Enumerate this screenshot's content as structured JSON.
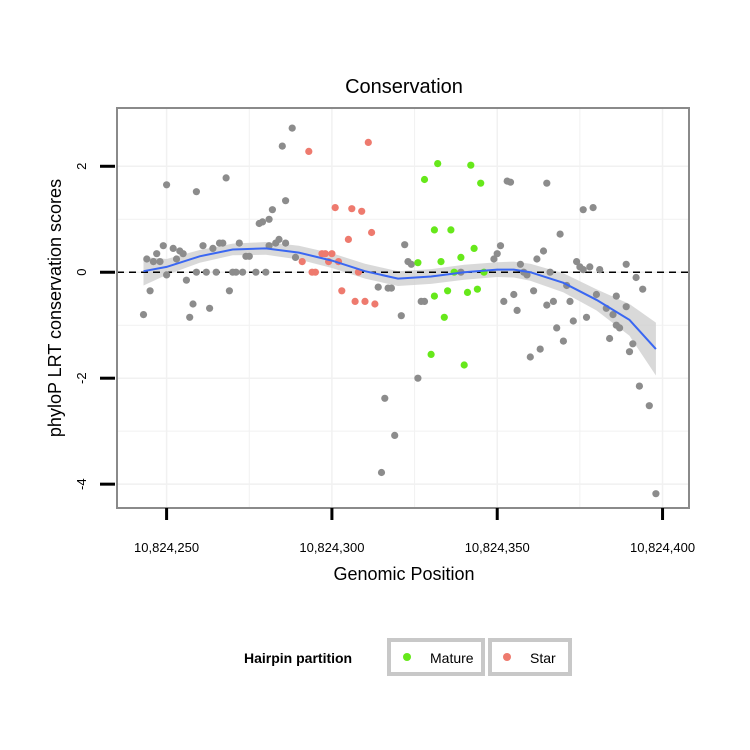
{
  "chart_data": {
    "type": "scatter",
    "title": "Conservation",
    "xlabel": "Genomic Position",
    "ylabel": "phyloP LRT conservation scores",
    "xlim": [
      10824235,
      10824408
    ],
    "ylim": [
      -4.45,
      3.1
    ],
    "x_ticks": [
      10824250,
      10824300,
      10824350,
      10824400
    ],
    "x_tick_labels": [
      "10,824,250",
      "10,824,300",
      "10,824,350",
      "10,824,400"
    ],
    "y_ticks": [
      2,
      0,
      -2,
      -4
    ],
    "y_tick_labels": [
      "2",
      "0",
      "-2",
      "-4"
    ],
    "reference_line_y": 0,
    "legend": {
      "title": "Hairpin partition",
      "position": "bottom",
      "entries": [
        {
          "label": "Mature",
          "color": "#66e81a"
        },
        {
          "label": "Star",
          "color": "#ee7a6e"
        }
      ]
    },
    "colors": {
      "other": "#8c8c8c",
      "mature": "#66e81a",
      "star": "#ee7a6e",
      "smooth_line": "#3a67f2",
      "ribbon": "#cfcfcf"
    },
    "series": [
      {
        "name": "Other",
        "points": [
          [
            10824243,
            -0.8
          ],
          [
            10824244,
            0.25
          ],
          [
            10824245,
            -0.35
          ],
          [
            10824246,
            0.2
          ],
          [
            10824247,
            0.35
          ],
          [
            10824248,
            0.2
          ],
          [
            10824249,
            0.5
          ],
          [
            10824250,
            -0.05
          ],
          [
            10824250,
            1.65
          ],
          [
            10824252,
            0.45
          ],
          [
            10824253,
            0.25
          ],
          [
            10824254,
            0.4
          ],
          [
            10824255,
            0.35
          ],
          [
            10824256,
            -0.15
          ],
          [
            10824257,
            -0.85
          ],
          [
            10824258,
            -0.6
          ],
          [
            10824259,
            0.0
          ],
          [
            10824259,
            1.52
          ],
          [
            10824261,
            0.5
          ],
          [
            10824262,
            0.0
          ],
          [
            10824263,
            -0.68
          ],
          [
            10824264,
            0.45
          ],
          [
            10824265,
            0.0
          ],
          [
            10824266,
            0.55
          ],
          [
            10824267,
            0.55
          ],
          [
            10824268,
            1.78
          ],
          [
            10824269,
            -0.35
          ],
          [
            10824270,
            0.0
          ],
          [
            10824271,
            0.0
          ],
          [
            10824272,
            0.55
          ],
          [
            10824273,
            0.0
          ],
          [
            10824274,
            0.3
          ],
          [
            10824275,
            0.3
          ],
          [
            10824277,
            0.0
          ],
          [
            10824278,
            0.92
          ],
          [
            10824279,
            0.95
          ],
          [
            10824280,
            0.0
          ],
          [
            10824281,
            0.5
          ],
          [
            10824281,
            1.0
          ],
          [
            10824282,
            1.18
          ],
          [
            10824283,
            0.55
          ],
          [
            10824284,
            0.62
          ],
          [
            10824285,
            2.38
          ],
          [
            10824286,
            1.35
          ],
          [
            10824286,
            0.55
          ],
          [
            10824288,
            2.72
          ],
          [
            10824289,
            0.28
          ],
          [
            10824314,
            -0.28
          ],
          [
            10824315,
            -3.78
          ],
          [
            10824316,
            -2.38
          ],
          [
            10824317,
            -0.3
          ],
          [
            10824318,
            -0.3
          ],
          [
            10824319,
            -3.08
          ],
          [
            10824321,
            -0.82
          ],
          [
            10824322,
            0.52
          ],
          [
            10824323,
            0.2
          ],
          [
            10824324,
            0.15
          ],
          [
            10824326,
            -2.0
          ],
          [
            10824327,
            -0.55
          ],
          [
            10824328,
            -0.55
          ],
          [
            10824339,
            0.0
          ],
          [
            10824349,
            0.25
          ],
          [
            10824350,
            0.35
          ],
          [
            10824351,
            0.5
          ],
          [
            10824352,
            -0.55
          ],
          [
            10824353,
            1.72
          ],
          [
            10824354,
            1.7
          ],
          [
            10824355,
            -0.42
          ],
          [
            10824356,
            -0.72
          ],
          [
            10824357,
            0.15
          ],
          [
            10824358,
            0.0
          ],
          [
            10824359,
            -0.05
          ],
          [
            10824360,
            -1.6
          ],
          [
            10824361,
            -0.35
          ],
          [
            10824362,
            0.25
          ],
          [
            10824363,
            -1.45
          ],
          [
            10824364,
            0.4
          ],
          [
            10824365,
            -0.62
          ],
          [
            10824365,
            1.68
          ],
          [
            10824366,
            0.0
          ],
          [
            10824367,
            -0.55
          ],
          [
            10824368,
            -1.05
          ],
          [
            10824369,
            0.72
          ],
          [
            10824370,
            -1.3
          ],
          [
            10824371,
            -0.25
          ],
          [
            10824372,
            -0.55
          ],
          [
            10824373,
            -0.92
          ],
          [
            10824374,
            0.2
          ],
          [
            10824375,
            0.1
          ],
          [
            10824376,
            0.05
          ],
          [
            10824376,
            1.18
          ],
          [
            10824377,
            -0.85
          ],
          [
            10824378,
            0.1
          ],
          [
            10824379,
            1.22
          ],
          [
            10824380,
            -0.42
          ],
          [
            10824381,
            0.05
          ],
          [
            10824383,
            -0.68
          ],
          [
            10824384,
            -1.25
          ],
          [
            10824385,
            -0.8
          ],
          [
            10824386,
            -0.45
          ],
          [
            10824386,
            -1.0
          ],
          [
            10824387,
            -1.05
          ],
          [
            10824389,
            0.15
          ],
          [
            10824389,
            -0.65
          ],
          [
            10824390,
            -1.5
          ],
          [
            10824391,
            -1.35
          ],
          [
            10824392,
            -0.1
          ],
          [
            10824393,
            -2.15
          ],
          [
            10824394,
            -0.32
          ],
          [
            10824396,
            -2.52
          ],
          [
            10824398,
            -4.18
          ]
        ]
      },
      {
        "name": "Mature",
        "points": [
          [
            10824326,
            0.18
          ],
          [
            10824328,
            1.75
          ],
          [
            10824330,
            -1.55
          ],
          [
            10824331,
            -0.45
          ],
          [
            10824331,
            0.8
          ],
          [
            10824332,
            2.05
          ],
          [
            10824333,
            0.2
          ],
          [
            10824334,
            -0.85
          ],
          [
            10824335,
            -0.35
          ],
          [
            10824336,
            0.8
          ],
          [
            10824337,
            0.0
          ],
          [
            10824339,
            0.28
          ],
          [
            10824340,
            -1.75
          ],
          [
            10824341,
            -0.38
          ],
          [
            10824342,
            2.02
          ],
          [
            10824343,
            0.45
          ],
          [
            10824344,
            -0.32
          ],
          [
            10824345,
            1.68
          ],
          [
            10824346,
            0.0
          ]
        ]
      },
      {
        "name": "Star",
        "points": [
          [
            10824291,
            0.2
          ],
          [
            10824293,
            2.28
          ],
          [
            10824294,
            0.0
          ],
          [
            10824295,
            0.0
          ],
          [
            10824297,
            0.35
          ],
          [
            10824298,
            0.35
          ],
          [
            10824299,
            0.2
          ],
          [
            10824300,
            0.35
          ],
          [
            10824301,
            1.22
          ],
          [
            10824302,
            0.2
          ],
          [
            10824303,
            -0.35
          ],
          [
            10824305,
            0.62
          ],
          [
            10824306,
            1.2
          ],
          [
            10824307,
            -0.55
          ],
          [
            10824308,
            0.0
          ],
          [
            10824309,
            1.15
          ],
          [
            10824310,
            -0.55
          ],
          [
            10824311,
            2.45
          ],
          [
            10824312,
            0.75
          ],
          [
            10824313,
            -0.6
          ]
        ]
      }
    ],
    "smooth_fit": {
      "method": "loess",
      "x": [
        10824243,
        10824250,
        10824260,
        10824270,
        10824280,
        10824290,
        10824300,
        10824310,
        10824320,
        10824330,
        10824340,
        10824350,
        10824355,
        10824360,
        10824370,
        10824380,
        10824390,
        10824398
      ],
      "y": [
        0.02,
        0.1,
        0.3,
        0.43,
        0.45,
        0.37,
        0.22,
        0.02,
        -0.12,
        -0.08,
        0.0,
        0.05,
        0.05,
        0.0,
        -0.2,
        -0.52,
        -0.9,
        -1.45
      ],
      "ci_lower": [
        -0.25,
        -0.05,
        0.18,
        0.32,
        0.33,
        0.24,
        0.08,
        -0.12,
        -0.26,
        -0.22,
        -0.14,
        -0.09,
        -0.1,
        -0.16,
        -0.38,
        -0.72,
        -1.2,
        -1.95
      ],
      "ci_upper": [
        0.29,
        0.25,
        0.42,
        0.54,
        0.57,
        0.5,
        0.36,
        0.16,
        0.02,
        0.06,
        0.14,
        0.19,
        0.2,
        0.16,
        -0.02,
        -0.32,
        -0.6,
        -0.95
      ]
    }
  }
}
